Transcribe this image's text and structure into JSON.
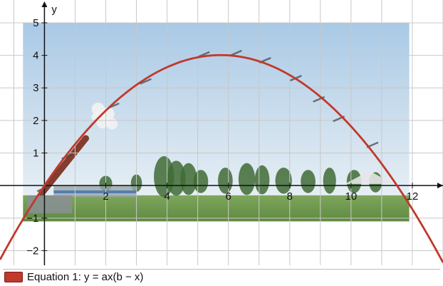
{
  "chart_data": {
    "type": "line",
    "xlabel": "",
    "ylabel": "y",
    "xlim": [
      -1.45,
      13.0
    ],
    "ylim": [
      -2.45,
      5.7
    ],
    "x_ticks": [
      {
        "value": 2,
        "label": "2"
      },
      {
        "value": 4,
        "label": "4"
      },
      {
        "value": 6,
        "label": "6"
      },
      {
        "value": 8,
        "label": "8"
      },
      {
        "value": 10,
        "label": "10"
      },
      {
        "value": 12,
        "label": "12"
      }
    ],
    "y_ticks": [
      {
        "value": -2,
        "label": "−2"
      },
      {
        "value": -1,
        "label": "−1"
      },
      {
        "value": 1,
        "label": "1"
      },
      {
        "value": 2,
        "label": "2"
      },
      {
        "value": 3,
        "label": "3"
      },
      {
        "value": 4,
        "label": "4"
      },
      {
        "value": 5,
        "label": "5"
      }
    ],
    "grid": true,
    "series": [
      {
        "name": "Equation 1: y = ax(b − x)",
        "equation": "y = ax(b − x)",
        "a": 0.1212,
        "b": 11.5,
        "color": "#c0392b"
      }
    ],
    "background_photo": {
      "x_range": [
        -0.7,
        11.9
      ],
      "y_range": [
        -1.1,
        5.0
      ]
    },
    "tracked_points": [
      {
        "x": -0.05,
        "y": -0.1
      },
      {
        "x": 0.75,
        "y": 0.9
      },
      {
        "x": 2.25,
        "y": 2.45
      },
      {
        "x": 3.3,
        "y": 3.2
      },
      {
        "x": 4.3,
        "y": 3.75
      },
      {
        "x": 5.2,
        "y": 4.03
      },
      {
        "x": 6.25,
        "y": 4.07
      },
      {
        "x": 7.2,
        "y": 3.85
      },
      {
        "x": 8.2,
        "y": 3.3
      },
      {
        "x": 8.95,
        "y": 2.65
      },
      {
        "x": 9.6,
        "y": 2.05
      },
      {
        "x": 10.7,
        "y": 1.25
      }
    ]
  },
  "legend": {
    "label": "Equation 1: y = ax(b − x)",
    "color": "#c0392b"
  }
}
